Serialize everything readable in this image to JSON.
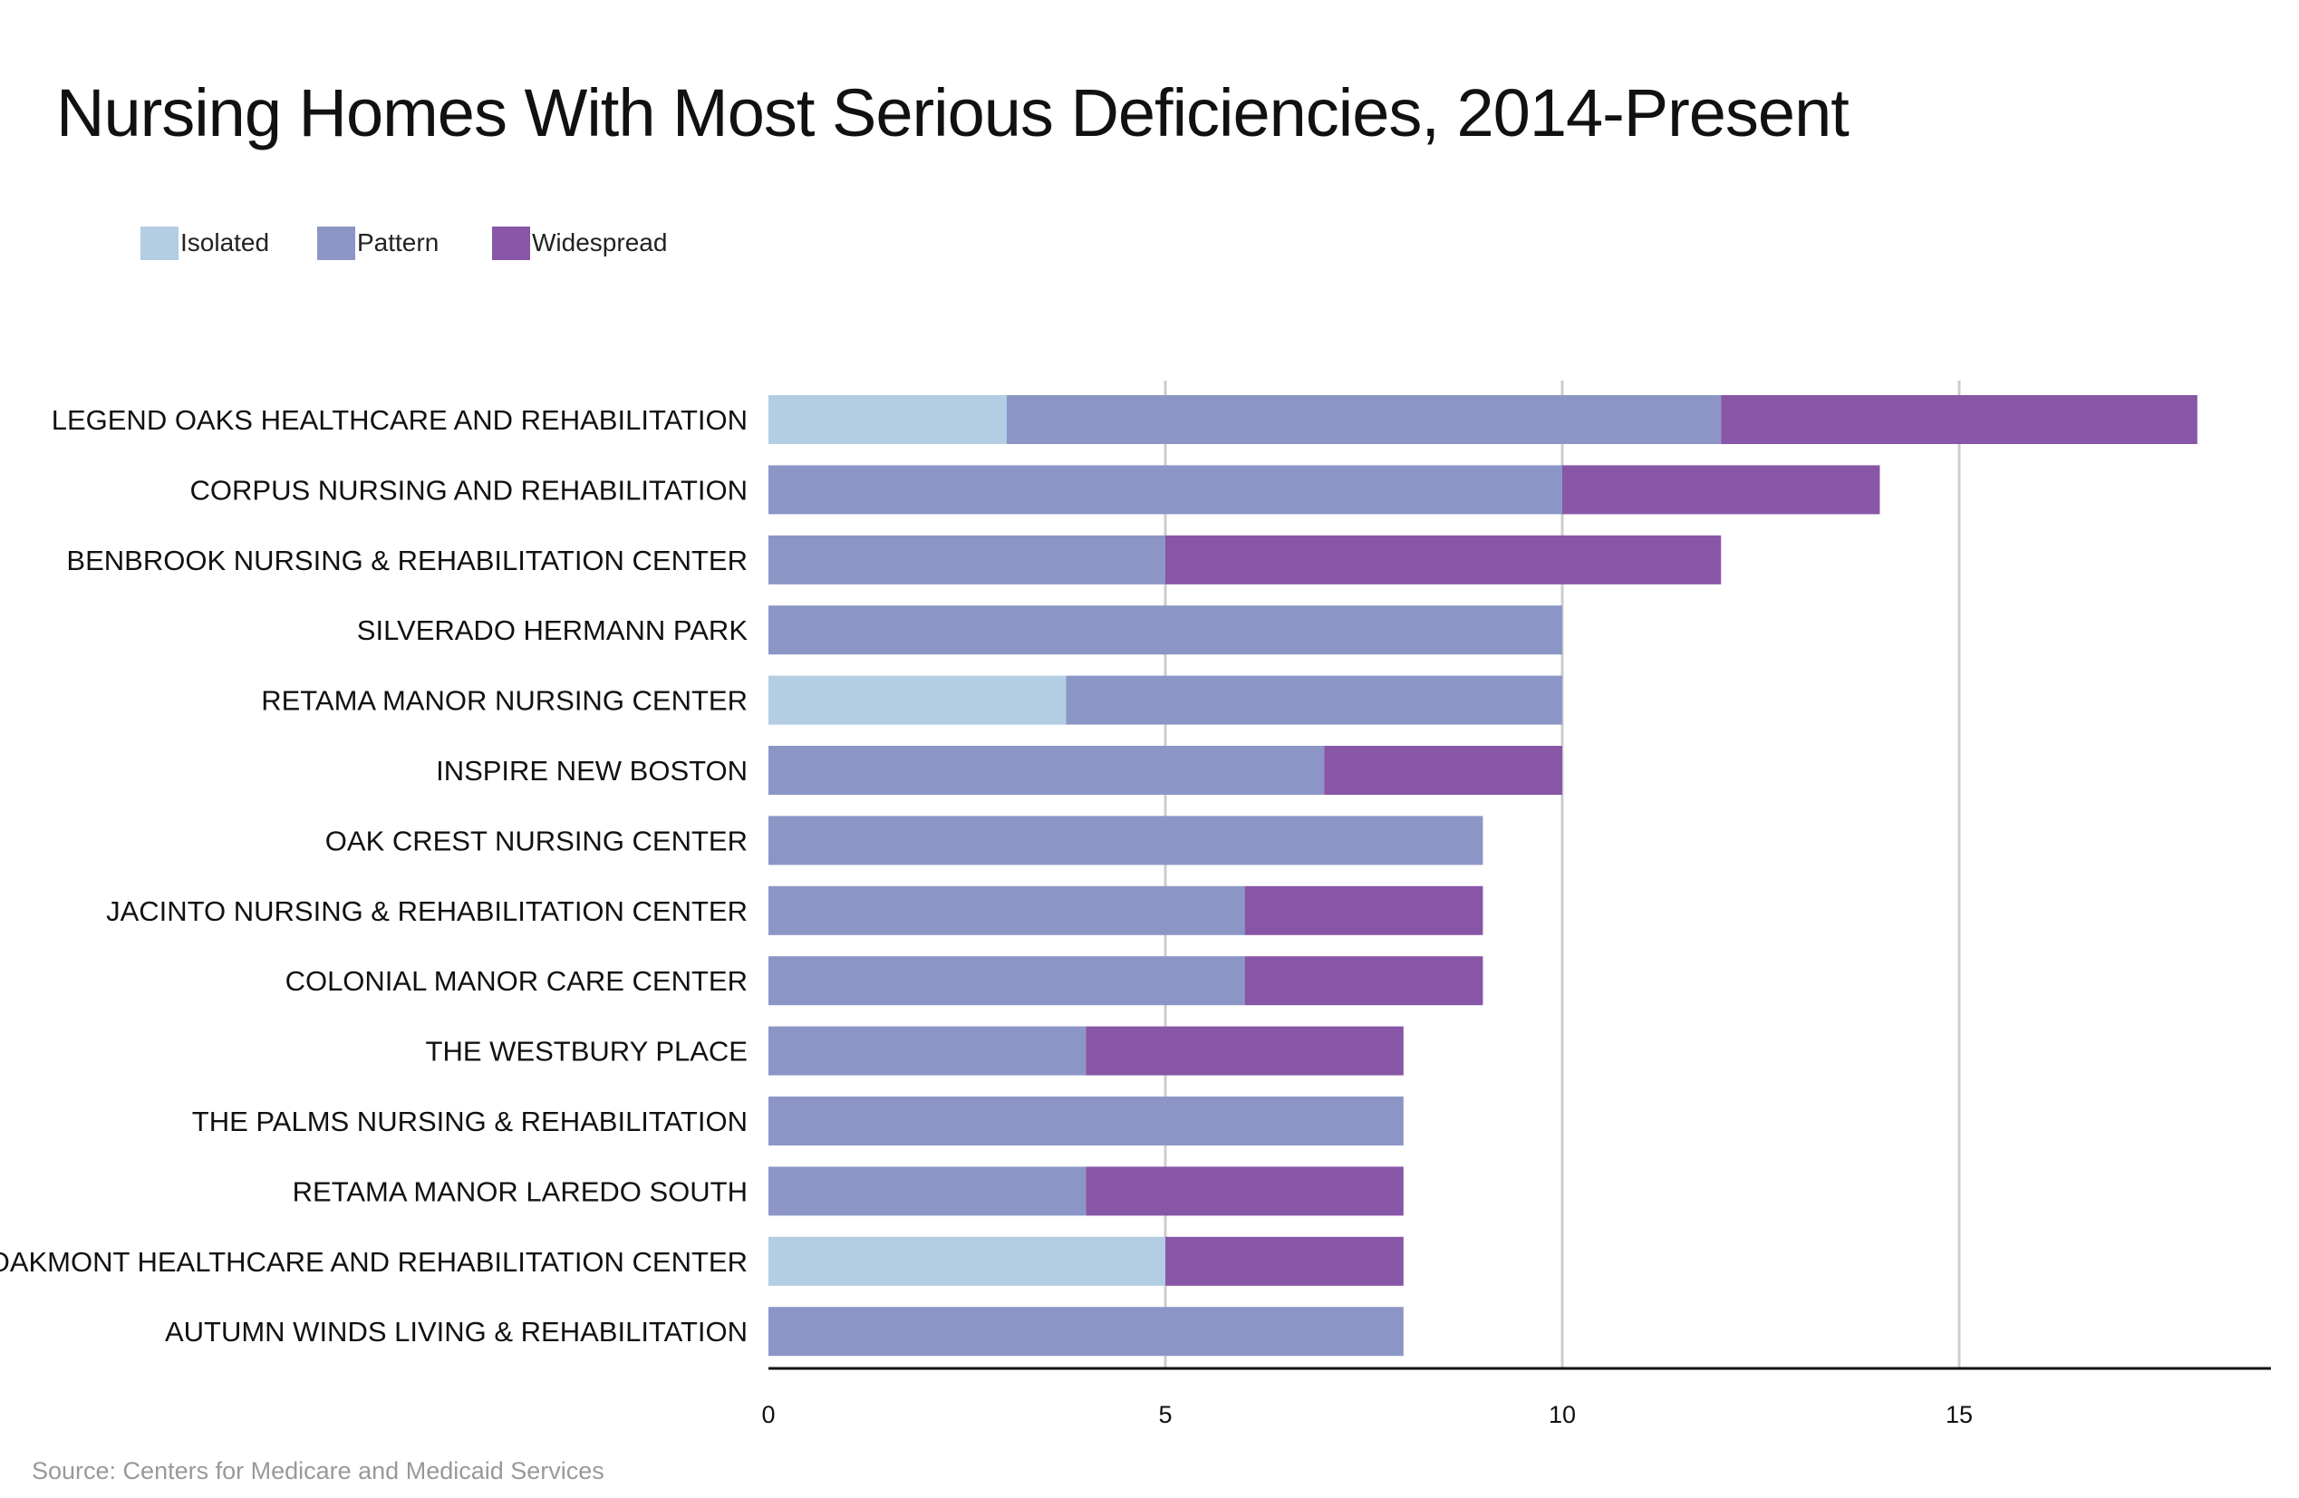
{
  "title": "Nursing Homes With Most Serious Deficiencies, 2014-Present",
  "source": "Source: Centers for Medicare and Medicaid Services",
  "colors": {
    "isolated": "#b3cde3",
    "pattern": "#8c96c6",
    "widespread": "#8856a7",
    "grid": "#cccccc",
    "axis": "#111111"
  },
  "chart_data": {
    "type": "bar",
    "orientation": "horizontal",
    "stacked": true,
    "categories": [
      "LEGEND OAKS HEALTHCARE AND REHABILITATION",
      "CORPUS NURSING AND REHABILITATION",
      "BENBROOK NURSING & REHABILITATION CENTER",
      "SILVERADO HERMANN PARK",
      "RETAMA MANOR NURSING CENTER",
      "INSPIRE NEW BOSTON",
      "OAK CREST NURSING CENTER",
      "JACINTO NURSING & REHABILITATION CENTER",
      "COLONIAL MANOR CARE CENTER",
      "THE WESTBURY PLACE",
      "THE PALMS NURSING & REHABILITATION",
      "RETAMA MANOR LAREDO SOUTH",
      "OAKMONT HEALTHCARE AND REHABILITATION CENTER",
      "AUTUMN WINDS LIVING & REHABILITATION"
    ],
    "series": [
      {
        "name": "Isolated",
        "values": [
          3,
          0,
          0,
          0,
          3.75,
          0,
          0,
          0,
          0,
          0,
          0,
          0,
          5,
          0
        ]
      },
      {
        "name": "Pattern",
        "values": [
          9,
          10,
          5,
          10,
          6.25,
          7,
          9,
          6,
          6,
          4,
          8,
          4,
          0,
          8
        ]
      },
      {
        "name": "Widespread",
        "values": [
          6,
          4,
          7,
          0,
          0,
          3,
          0,
          3,
          3,
          4,
          0,
          4,
          3,
          0
        ]
      }
    ],
    "x_ticks": [
      "0",
      "5",
      "10",
      "15"
    ],
    "x_tick_values": [
      0,
      5,
      10,
      15
    ],
    "xlim": [
      0,
      19
    ],
    "xlabel": "",
    "ylabel": "",
    "grid": true,
    "legend_position": "top-left"
  }
}
